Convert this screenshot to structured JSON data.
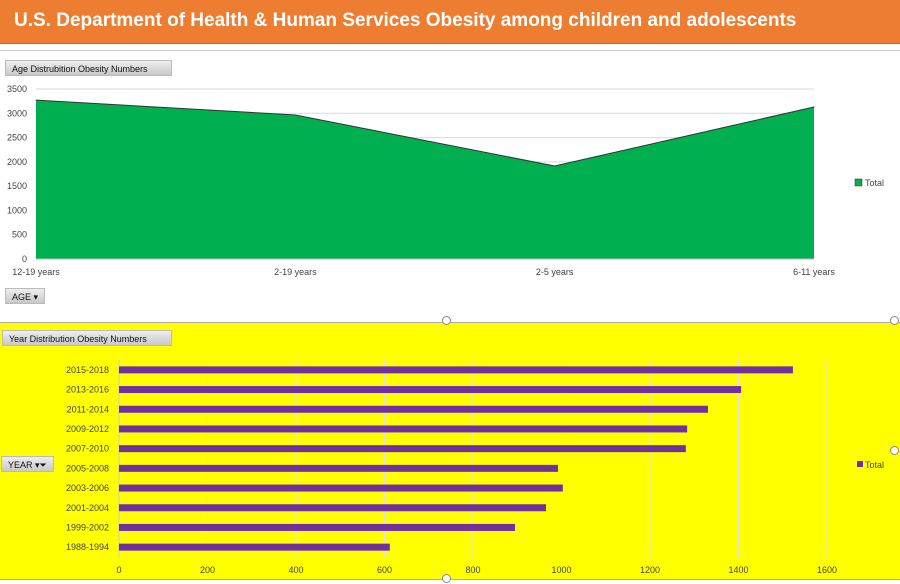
{
  "header": {
    "title": "U.S. Department of Health & Human Services  Obesity among children and adolescents"
  },
  "chart_data": [
    {
      "type": "area",
      "field_button": "Age Distrubition  Obesity Numbers",
      "axis_button": "AGE",
      "categories": [
        "12-19 years",
        "2-19 years",
        "2-5 years",
        "6-11 years"
      ],
      "series": [
        {
          "name": "Total",
          "values": [
            3270,
            2965,
            1915,
            3130
          ],
          "color": "#00B050"
        }
      ],
      "ylim": [
        0,
        3500
      ],
      "yticks": [
        0,
        500,
        1000,
        1500,
        2000,
        2500,
        3000,
        3500
      ],
      "grid": true,
      "legend": "right"
    },
    {
      "type": "bar",
      "orientation": "horizontal",
      "field_button": "Year Distribution  Obesity Numbers",
      "axis_button": "YEAR",
      "categories": [
        "2015-2018",
        "2013-2016",
        "2011-2014",
        "2009-2012",
        "2007-2010",
        "2005-2008",
        "2003-2006",
        "2001-2004",
        "1999-2002",
        "1988-1994"
      ],
      "series": [
        {
          "name": "Total",
          "values": [
            1523,
            1406,
            1331,
            1284,
            1281,
            992,
            1003,
            965,
            895,
            612
          ],
          "color": "#7030A0"
        }
      ],
      "xlim": [
        0,
        1700
      ],
      "xticks": [
        0,
        200,
        400,
        600,
        800,
        1000,
        1200,
        1400,
        1600
      ],
      "grid": true,
      "legend": "right",
      "background": "#FFFF00"
    }
  ]
}
